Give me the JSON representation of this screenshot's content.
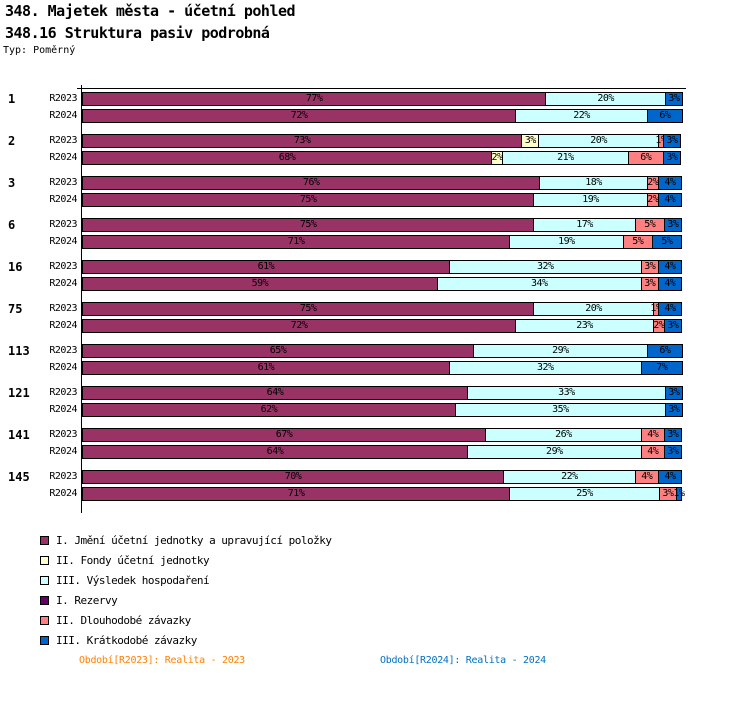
{
  "header": {
    "title": "348. Majetek města - účetní pohled",
    "subtitle": "348.16 Struktura pasiv podrobná",
    "type_label": "Typ: Poměrný"
  },
  "footer": {
    "left": "Období[R2023]: Realita - 2023",
    "left_color": "#FF8000",
    "right": "Období[R2024]: Realita - 2024",
    "right_color": "#0070C0"
  },
  "chart_data": {
    "type": "bar",
    "orientation": "horizontal",
    "stacked": true,
    "unit": "%",
    "xlim": [
      0,
      100
    ],
    "grid": false,
    "legend_position": "bottom-left",
    "series": [
      {
        "name": "I. Jmění účetní jednotky a upravující položky",
        "color": "#993366"
      },
      {
        "name": "II. Fondy účetní jednotky",
        "color": "#FFFFCC"
      },
      {
        "name": "III. Výsledek hospodaření",
        "color": "#CCFFFF"
      },
      {
        "name": "I. Rezervy",
        "color": "#660066"
      },
      {
        "name": "II. Dlouhodobé závazky",
        "color": "#FF8080"
      },
      {
        "name": "III. Krátkodobé závazky",
        "color": "#0066CC"
      }
    ],
    "groups": [
      {
        "label": "1",
        "rows": [
          {
            "label": "R2023",
            "values": [
              77,
              0,
              20,
              0,
              0,
              3
            ]
          },
          {
            "label": "R2024",
            "values": [
              72,
              0,
              22,
              0,
              0,
              6
            ]
          }
        ]
      },
      {
        "label": "2",
        "rows": [
          {
            "label": "R2023",
            "values": [
              73,
              3,
              20,
              0,
              1,
              3
            ]
          },
          {
            "label": "R2024",
            "values": [
              68,
              2,
              21,
              0,
              6,
              3
            ]
          }
        ]
      },
      {
        "label": "3",
        "rows": [
          {
            "label": "R2023",
            "values": [
              76,
              0,
              18,
              0,
              2,
              4
            ]
          },
          {
            "label": "R2024",
            "values": [
              75,
              0,
              19,
              0,
              2,
              4
            ]
          }
        ]
      },
      {
        "label": "6",
        "rows": [
          {
            "label": "R2023",
            "values": [
              75,
              0,
              17,
              0,
              5,
              3
            ]
          },
          {
            "label": "R2024",
            "values": [
              71,
              0,
              19,
              0,
              5,
              5
            ]
          }
        ]
      },
      {
        "label": "16",
        "rows": [
          {
            "label": "R2023",
            "values": [
              61,
              0,
              32,
              0,
              3,
              4
            ]
          },
          {
            "label": "R2024",
            "values": [
              59,
              0,
              34,
              0,
              3,
              4
            ]
          }
        ]
      },
      {
        "label": "75",
        "rows": [
          {
            "label": "R2023",
            "values": [
              75,
              0,
              20,
              0,
              1,
              4
            ]
          },
          {
            "label": "R2024",
            "values": [
              72,
              0,
              23,
              0,
              2,
              3
            ]
          }
        ]
      },
      {
        "label": "113",
        "rows": [
          {
            "label": "R2023",
            "values": [
              65,
              0,
              29,
              0,
              0,
              6
            ]
          },
          {
            "label": "R2024",
            "values": [
              61,
              0,
              32,
              0,
              0,
              7
            ]
          }
        ]
      },
      {
        "label": "121",
        "rows": [
          {
            "label": "R2023",
            "values": [
              64,
              0,
              33,
              0,
              0,
              3
            ]
          },
          {
            "label": "R2024",
            "values": [
              62,
              0,
              35,
              0,
              0,
              3
            ]
          }
        ]
      },
      {
        "label": "141",
        "rows": [
          {
            "label": "R2023",
            "values": [
              67,
              0,
              26,
              0,
              4,
              3
            ]
          },
          {
            "label": "R2024",
            "values": [
              64,
              0,
              29,
              0,
              4,
              3
            ]
          }
        ]
      },
      {
        "label": "145",
        "rows": [
          {
            "label": "R2023",
            "values": [
              70,
              0,
              22,
              0,
              4,
              4
            ]
          },
          {
            "label": "R2024",
            "values": [
              71,
              0,
              25,
              0,
              3,
              1
            ]
          }
        ]
      }
    ]
  }
}
